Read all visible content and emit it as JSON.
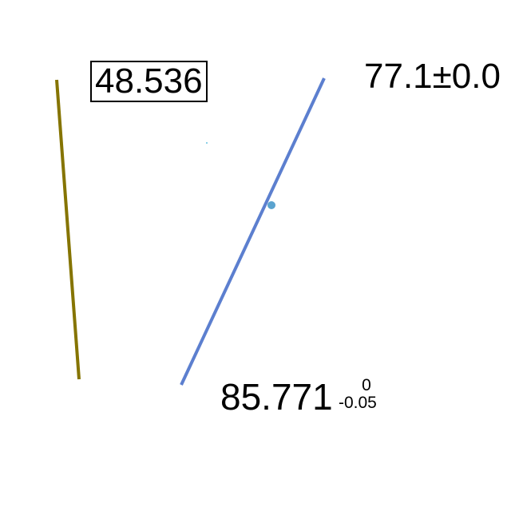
{
  "labels": {
    "boxed": "48.536",
    "top_right": "77.1±0.0",
    "bottom_main": "85.771",
    "bottom_sup": "0",
    "bottom_sub": "-0.05"
  },
  "colors": {
    "olive_line": "#857400",
    "blue_line": "#5c7fcf",
    "point": "#5aa3cf",
    "small_dot": "#66c2e0",
    "text": "#000000"
  }
}
